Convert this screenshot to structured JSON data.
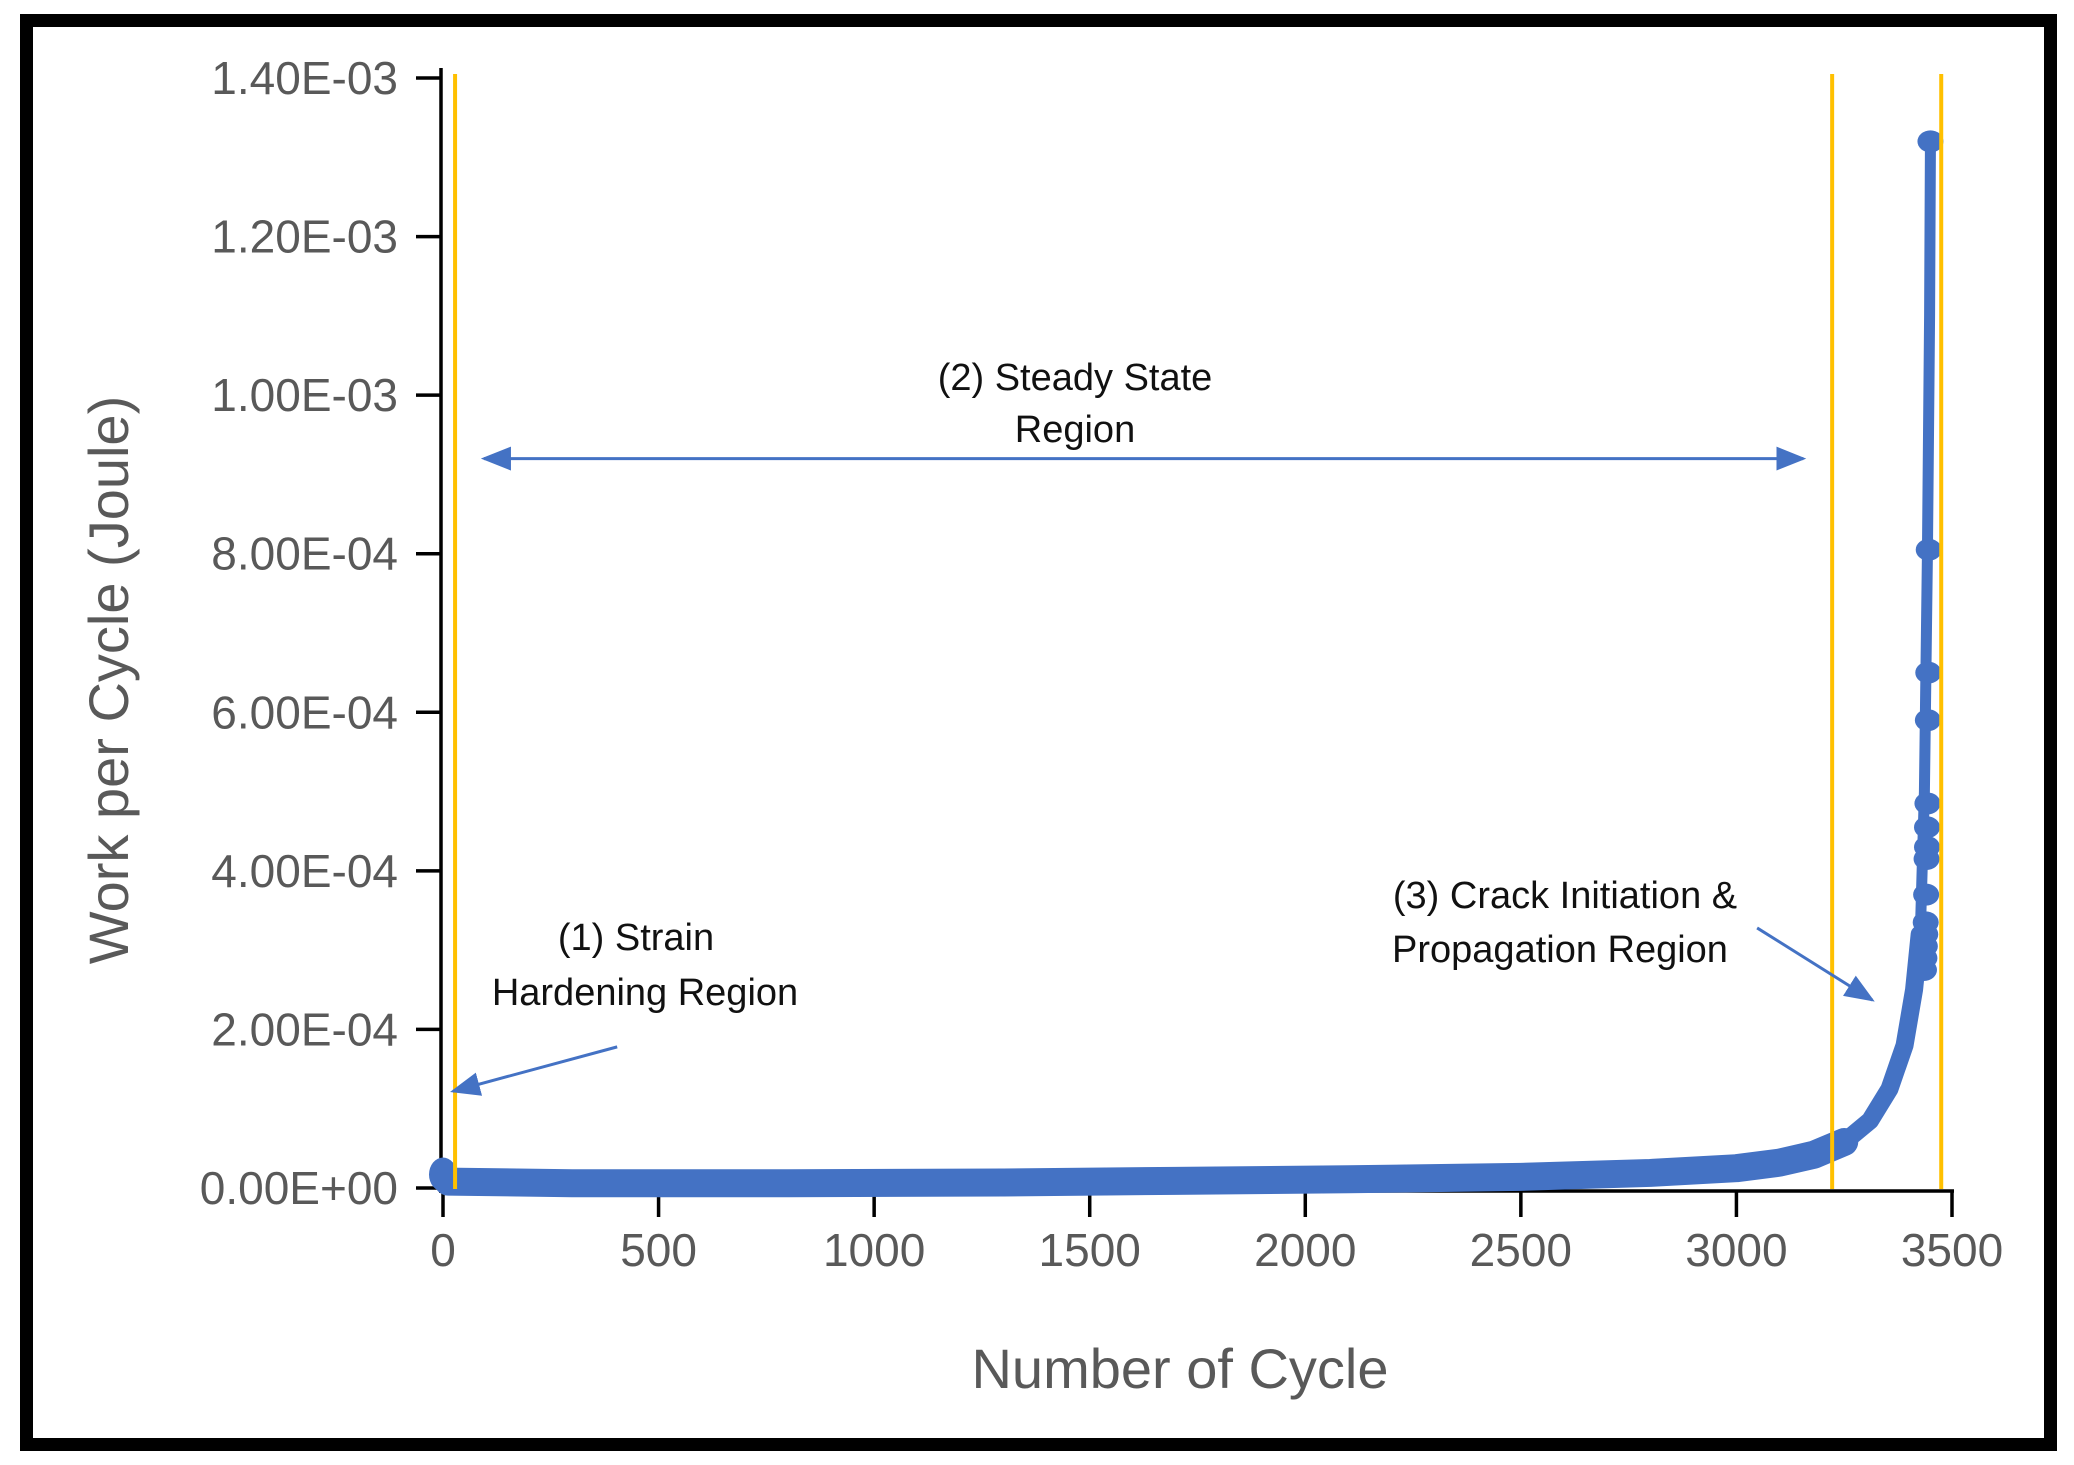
{
  "figure": {
    "frame_color": "#000000",
    "background": "#ffffff"
  },
  "chart_data": {
    "type": "scatter",
    "title": "",
    "xlabel": "Number of Cycle",
    "ylabel": "Work per Cycle (Joule)",
    "xlim": [
      0,
      3500
    ],
    "ylim": [
      0,
      0.0014
    ],
    "grid": false,
    "legend": false,
    "x_ticks": [
      {
        "value": 0,
        "label": "0"
      },
      {
        "value": 500,
        "label": "500"
      },
      {
        "value": 1000,
        "label": "1000"
      },
      {
        "value": 1500,
        "label": "1500"
      },
      {
        "value": 2000,
        "label": "2000"
      },
      {
        "value": 2500,
        "label": "2500"
      },
      {
        "value": 3000,
        "label": "3000"
      },
      {
        "value": 3500,
        "label": "3500"
      }
    ],
    "y_ticks": [
      {
        "value": 0.0,
        "label": "0.00E+00"
      },
      {
        "value": 0.0002,
        "label": "2.00E-04"
      },
      {
        "value": 0.0004,
        "label": "4.00E-04"
      },
      {
        "value": 0.0006,
        "label": "6.00E-04"
      },
      {
        "value": 0.0008,
        "label": "8.00E-04"
      },
      {
        "value": 0.001,
        "label": "1.00E-03"
      },
      {
        "value": 0.0012,
        "label": "1.20E-03"
      },
      {
        "value": 0.0014,
        "label": "1.40E-03"
      }
    ],
    "colors": {
      "series": "#4472C4",
      "region_boundary_lines": "#FFC000",
      "axis": "#000000",
      "tick_labels": "#595959",
      "annotation_text": "#111111",
      "arrows": "#4472C4"
    },
    "series": [
      {
        "name": "work-per-cycle",
        "initial_cluster_point": {
          "x": 0,
          "y": 1.7e-05
        },
        "baseline_points": [
          [
            12,
            8e-06
          ],
          [
            300,
            6e-06
          ],
          [
            800,
            6e-06
          ],
          [
            1300,
            7e-06
          ],
          [
            1700,
            9e-06
          ],
          [
            2100,
            1.1e-05
          ],
          [
            2500,
            1.4e-05
          ],
          [
            2800,
            1.9e-05
          ],
          [
            3000,
            2.5e-05
          ],
          [
            3100,
            3.2e-05
          ],
          [
            3180,
            4.2e-05
          ],
          [
            3250,
            5.8e-05
          ]
        ],
        "bend_points": [
          [
            3250,
            5.8e-05
          ],
          [
            3310,
            8.5e-05
          ],
          [
            3355,
            0.000125
          ],
          [
            3390,
            0.00018
          ],
          [
            3412,
            0.00025
          ],
          [
            3425,
            0.00032
          ]
        ],
        "spike_points": [
          [
            3427,
            0.00033
          ],
          [
            3436,
            0.0005
          ],
          [
            3443,
            0.0008
          ],
          [
            3448,
            0.0011
          ],
          [
            3450,
            0.00132
          ]
        ],
        "spike_dots": [
          [
            3450,
            0.00132
          ],
          [
            3446,
            0.000805
          ],
          [
            3445,
            0.00065
          ],
          [
            3444,
            0.00059
          ],
          [
            3443,
            0.000485
          ],
          [
            3442,
            0.000455
          ],
          [
            3442,
            0.00043
          ],
          [
            3441,
            0.000415
          ],
          [
            3440,
            0.00037
          ],
          [
            3439,
            0.000335
          ],
          [
            3438,
            0.00032
          ],
          [
            3437,
            0.000305
          ],
          [
            3436,
            0.00029
          ],
          [
            3435,
            0.000275
          ]
        ]
      }
    ],
    "region_boundary_lines_x": [
      28,
      3222,
      3475
    ],
    "steady_state_arrow": {
      "y": 0.00092,
      "x_from": 95,
      "x_to": 3155
    },
    "annotations": [
      {
        "lines": [
          "(1) Strain",
          "Hardening Region"
        ],
        "arrow_from": [
          404,
          0.000178
        ],
        "arrow_to": [
          23,
          0.000122
        ]
      },
      {
        "lines": [
          "(2) Steady State",
          "Region"
        ]
      },
      {
        "lines": [
          "(3) Crack Initiation &",
          "Propagation Region"
        ],
        "arrow_from": [
          3048,
          0.000328
        ],
        "arrow_to": [
          3315,
          0.000237
        ]
      }
    ]
  }
}
